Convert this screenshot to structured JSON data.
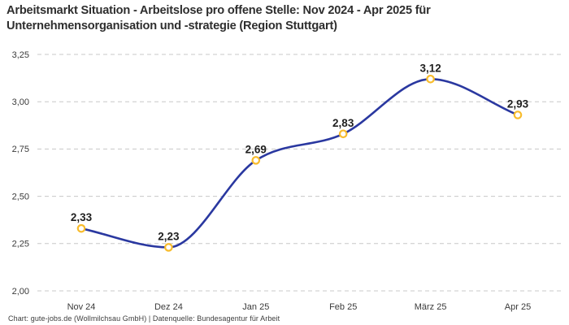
{
  "header": {
    "title": "Arbeitsmarkt Situation - Arbeitslose pro offene Stelle: Nov 2024 - Apr 2025 für Unternehmensorganisation und -strategie (Region Stuttgart)"
  },
  "footer": {
    "attribution": "Chart: gute-jobs.de (Wollmilchsau GmbH) | Datenquelle: Bundesagentur für Arbeit"
  },
  "colors": {
    "line": "#2a38a0",
    "marker_ring": "#f8bc2c",
    "marker_fill": "#ffffff",
    "gridline": "#c8c8c8",
    "title_text": "#2e2e2e",
    "tick_text": "#3a3a3a",
    "label_text": "#1f1f1f",
    "background": "#ffffff"
  },
  "chart_data": {
    "type": "line",
    "title": "Arbeitsmarkt Situation - Arbeitslose pro offene Stelle: Nov 2024 - Apr 2025 für Unternehmensorganisation und -strategie (Region Stuttgart)",
    "categories": [
      "Nov 24",
      "Dez 24",
      "Jan 25",
      "Feb 25",
      "März 25",
      "Apr 25"
    ],
    "values": [
      2.33,
      2.23,
      2.69,
      2.83,
      3.12,
      2.93
    ],
    "value_labels": [
      "2,33",
      "2,23",
      "2,69",
      "2,83",
      "3,12",
      "2,93"
    ],
    "xlabel": "",
    "ylabel": "",
    "ylim": [
      2.0,
      3.25
    ],
    "yticks": [
      2.0,
      2.25,
      2.5,
      2.75,
      3.0,
      3.25
    ],
    "ytick_labels": [
      "2,00",
      "2,25",
      "2,50",
      "2,75",
      "3,00",
      "3,25"
    ],
    "grid": "horizontal-dashed",
    "legend": "none",
    "curve": "smooth-monotone",
    "markers": "open-circle"
  }
}
